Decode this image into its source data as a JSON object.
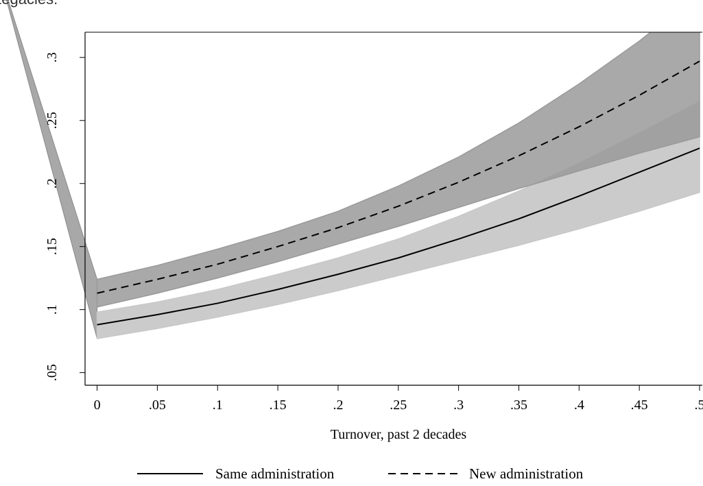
{
  "chart_data": {
    "type": "line",
    "title": "Legacies:",
    "xlabel": "Turnover, past 2 decades",
    "ylabel": "",
    "xlim": [
      -0.01,
      0.5
    ],
    "ylim": [
      0.04,
      0.32
    ],
    "xticks": [
      0,
      0.05,
      0.1,
      0.15,
      0.2,
      0.25,
      0.3,
      0.35,
      0.4,
      0.45,
      0.5
    ],
    "xtick_labels": [
      "0",
      ".05",
      ".1",
      ".15",
      ".2",
      ".25",
      ".3",
      ".35",
      ".4",
      ".45",
      ".5"
    ],
    "yticks": [
      0.05,
      0.1,
      0.15,
      0.2,
      0.25,
      0.3
    ],
    "ytick_labels": [
      ".05",
      ".1",
      ".15",
      ".2",
      ".25",
      ".3"
    ],
    "grid": false,
    "legend_position": "bottom",
    "x": [
      0,
      0.05,
      0.1,
      0.15,
      0.2,
      0.25,
      0.3,
      0.35,
      0.4,
      0.45,
      0.5
    ],
    "series": [
      {
        "name": "Same administration",
        "line_style": "solid",
        "band_color": "#c8c8c8",
        "values": [
          0.088,
          0.096,
          0.105,
          0.116,
          0.128,
          0.141,
          0.156,
          0.172,
          0.19,
          0.209,
          0.228
        ],
        "lower": [
          0.077,
          0.085,
          0.094,
          0.104,
          0.115,
          0.127,
          0.139,
          0.151,
          0.164,
          0.178,
          0.193
        ],
        "upper": [
          0.098,
          0.106,
          0.116,
          0.128,
          0.141,
          0.156,
          0.174,
          0.194,
          0.216,
          0.24,
          0.265
        ]
      },
      {
        "name": "New administration",
        "line_style": "dashed",
        "band_color": "#9a9a9a",
        "values": [
          0.113,
          0.124,
          0.136,
          0.15,
          0.165,
          0.182,
          0.201,
          0.222,
          0.245,
          0.27,
          0.297
        ],
        "lower": [
          0.102,
          0.113,
          0.125,
          0.138,
          0.152,
          0.166,
          0.181,
          0.196,
          0.21,
          0.224,
          0.237
        ],
        "upper": [
          0.124,
          0.135,
          0.148,
          0.162,
          0.178,
          0.198,
          0.221,
          0.248,
          0.279,
          0.313,
          0.351
        ]
      }
    ],
    "edge_artifact": {
      "x": [
        -0.082,
        0
      ],
      "lower": [
        0.37,
        0.077
      ],
      "upper": [
        0.37,
        0.124
      ]
    }
  }
}
